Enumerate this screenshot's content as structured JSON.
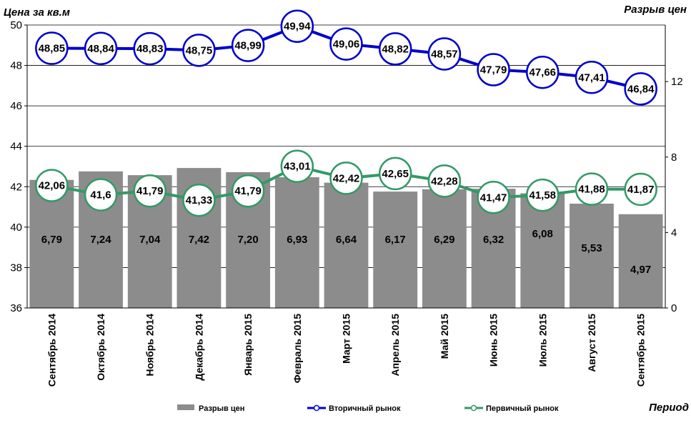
{
  "chart_data": {
    "type": "bar+line",
    "left_axis_title": "Цена за кв.м",
    "right_axis_title": "Разрыв цен",
    "x_axis_title": "Период",
    "categories": [
      "Сентябрь 2014",
      "Октябрь 2014",
      "Ноябрь 2014",
      "Декабрь 2014",
      "Январь 2015",
      "Февраль 2015",
      "Март 2015",
      "Апрель 2015",
      "Май 2015",
      "Июнь 2015",
      "Июль 2015",
      "Август 2015",
      "Сентябрь 2015"
    ],
    "left_axis": {
      "min": 36,
      "max": 50,
      "ticks": [
        "36",
        "38",
        "40",
        "42",
        "44",
        "46",
        "48",
        "50"
      ]
    },
    "right_axis": {
      "min": 0,
      "max": 15,
      "ticks": [
        "0",
        "4",
        "8",
        "12"
      ]
    },
    "gridlines": true,
    "legend_position": "bottom",
    "series": [
      {
        "name": "Разрыв цен",
        "kind": "bar",
        "axis": "right",
        "color": "#8c8c8c",
        "values": [
          6.79,
          7.24,
          7.04,
          7.42,
          7.2,
          6.93,
          6.64,
          6.17,
          6.29,
          6.32,
          6.08,
          5.53,
          4.97
        ],
        "labels": [
          "6,79",
          "7,24",
          "7,04",
          "7,42",
          "7,20",
          "6,93",
          "6,64",
          "6,17",
          "6,29",
          "6,32",
          "6,08",
          "5,53",
          "4,97"
        ]
      },
      {
        "name": "Вторичный рынок",
        "kind": "line",
        "axis": "left",
        "color": "#0000cc",
        "values": [
          48.85,
          48.84,
          48.83,
          48.75,
          48.99,
          49.94,
          49.06,
          48.82,
          48.57,
          47.79,
          47.66,
          47.41,
          46.84
        ],
        "labels": [
          "48,85",
          "48,84",
          "48,83",
          "48,75",
          "48,99",
          "49,94",
          "49,06",
          "48,82",
          "48,57",
          "47,79",
          "47,66",
          "47,41",
          "46,84"
        ]
      },
      {
        "name": "Первичный рынок",
        "kind": "line",
        "axis": "left",
        "color": "#339966",
        "values": [
          42.06,
          41.6,
          41.79,
          41.33,
          41.79,
          43.01,
          42.42,
          42.65,
          42.28,
          41.47,
          41.58,
          41.88,
          41.87
        ],
        "labels": [
          "42,06",
          "41,6",
          "41,79",
          "41,33",
          "41,79",
          "43,01",
          "42,42",
          "42,65",
          "42,28",
          "41,47",
          "41,58",
          "41,88",
          "41,87"
        ]
      }
    ]
  }
}
